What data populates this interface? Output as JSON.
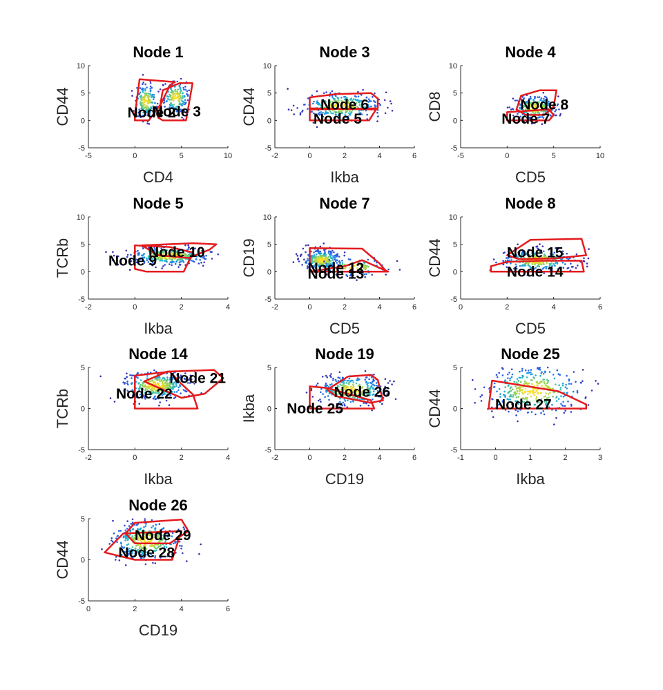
{
  "chart_data": [
    {
      "type": "scatter",
      "title": "Node 1",
      "xlabel": "CD4",
      "ylabel": "CD44",
      "xlim": [
        -5,
        10
      ],
      "ylim": [
        -5,
        10
      ],
      "xticks": [
        "-5",
        "0",
        "5",
        "10"
      ],
      "yticks": [
        "-5",
        "0",
        "5",
        "10"
      ],
      "clusters": [
        {
          "cx": 1.2,
          "cy": 3.5,
          "sx": 0.6,
          "sy": 1.6,
          "n": 170
        },
        {
          "cx": 4.4,
          "cy": 4.2,
          "sx": 0.7,
          "sy": 1.5,
          "n": 170
        }
      ],
      "gates": [
        {
          "name": "Node 2",
          "label_at": [
            1.8,
            1.4
          ],
          "polygon": [
            [
              0,
              1
            ],
            [
              0.5,
              7.5
            ],
            [
              4.3,
              7
            ],
            [
              3.8,
              6.5
            ],
            [
              2.8,
              3
            ],
            [
              1.5,
              0
            ],
            [
              0,
              0
            ]
          ]
        },
        {
          "name": "Node 3",
          "label_at": [
            4.5,
            1.6
          ],
          "polygon": [
            [
              2.5,
              0.5
            ],
            [
              3,
              5.5
            ],
            [
              4.8,
              6.8
            ],
            [
              6.2,
              6.8
            ],
            [
              5.5,
              0
            ],
            [
              3,
              0
            ]
          ]
        }
      ]
    },
    {
      "type": "scatter",
      "title": "Node 3",
      "xlabel": "Ikba",
      "ylabel": "CD44",
      "xlim": [
        -2,
        6
      ],
      "ylim": [
        -5,
        10
      ],
      "xticks": [
        "-2",
        "0",
        "2",
        "4",
        "6"
      ],
      "yticks": [
        "-5",
        "0",
        "5",
        "10"
      ],
      "clusters": [
        {
          "cx": 1.8,
          "cy": 2.6,
          "sx": 1.1,
          "sy": 1.2,
          "n": 320
        }
      ],
      "gates": [
        {
          "name": "Node 6",
          "label_at": [
            2,
            2.9
          ],
          "polygon": [
            [
              0,
              4.2
            ],
            [
              0,
              2
            ],
            [
              3.9,
              2.2
            ],
            [
              3.9,
              4
            ],
            [
              3.5,
              5
            ],
            [
              1.5,
              4.8
            ]
          ]
        },
        {
          "name": "Node 5",
          "label_at": [
            1.6,
            0.3
          ],
          "polygon": [
            [
              0,
              2.2
            ],
            [
              0,
              0
            ],
            [
              3.4,
              0
            ],
            [
              3.8,
              2
            ]
          ]
        }
      ]
    },
    {
      "type": "scatter",
      "title": "Node 4",
      "xlabel": "CD5",
      "ylabel": "CD8",
      "xlim": [
        -5,
        10
      ],
      "ylim": [
        -5,
        10
      ],
      "xticks": [
        "-5",
        "0",
        "5",
        "10"
      ],
      "yticks": [
        "-5",
        "0",
        "5",
        "10"
      ],
      "clusters": [
        {
          "cx": 3,
          "cy": 2.3,
          "sx": 1.2,
          "sy": 1.1,
          "n": 260
        }
      ],
      "gates": [
        {
          "name": "Node 8",
          "label_at": [
            4,
            2.9
          ],
          "polygon": [
            [
              1,
              2
            ],
            [
              1.5,
              4.5
            ],
            [
              3.5,
              5.5
            ],
            [
              5.3,
              5.5
            ],
            [
              5,
              2.5
            ],
            [
              4,
              1
            ],
            [
              2,
              1
            ]
          ]
        },
        {
          "name": "Node 7",
          "label_at": [
            2,
            0.3
          ],
          "polygon": [
            [
              0,
              0
            ],
            [
              0,
              1.5
            ],
            [
              4.5,
              2
            ],
            [
              5,
              1
            ],
            [
              4.5,
              0
            ]
          ]
        }
      ]
    },
    {
      "type": "scatter",
      "title": "Node 5",
      "xlabel": "Ikba",
      "ylabel": "TCRb",
      "xlim": [
        -2,
        4
      ],
      "ylim": [
        -5,
        10
      ],
      "xticks": [
        "-2",
        "0",
        "2",
        "4"
      ],
      "yticks": [
        "-5",
        "0",
        "5",
        "10"
      ],
      "clusters": [
        {
          "cx": 1.5,
          "cy": 2.9,
          "sx": 0.85,
          "sy": 0.8,
          "n": 340
        }
      ],
      "gates": [
        {
          "name": "Node 10",
          "label_at": [
            1.8,
            3.6
          ],
          "polygon": [
            [
              0.3,
              4.8
            ],
            [
              2.5,
              5.2
            ],
            [
              3.5,
              5
            ],
            [
              3.2,
              4
            ],
            [
              2.3,
              2.5
            ],
            [
              1,
              3
            ]
          ]
        },
        {
          "name": "Node 9",
          "label_at": [
            -0.1,
            2
          ],
          "polygon": [
            [
              0,
              0.5
            ],
            [
              0,
              4.8
            ],
            [
              1.5,
              4.5
            ],
            [
              2.5,
              3.5
            ],
            [
              2.1,
              0
            ],
            [
              0.5,
              0
            ]
          ]
        }
      ]
    },
    {
      "type": "scatter",
      "title": "Node 7",
      "xlabel": "CD5",
      "ylabel": "CD19",
      "xlim": [
        -2,
        6
      ],
      "ylim": [
        -5,
        10
      ],
      "xticks": [
        "-2",
        "0",
        "2",
        "4",
        "6"
      ],
      "yticks": [
        "-5",
        "0",
        "5",
        "10"
      ],
      "clusters": [
        {
          "cx": 0.7,
          "cy": 2.1,
          "sx": 0.55,
          "sy": 0.9,
          "n": 300
        },
        {
          "cx": 2.5,
          "cy": 0.8,
          "sx": 1,
          "sy": 0.8,
          "n": 100
        }
      ],
      "gates": [
        {
          "name": "Node 12",
          "label_at": [
            1.5,
            0.7
          ],
          "polygon": [
            [
              0,
              4.3
            ],
            [
              3,
              4.2
            ],
            [
              4,
              1.5
            ],
            [
              4.4,
              0
            ],
            [
              0,
              0
            ]
          ]
        },
        {
          "name": "Node 13",
          "label_at": [
            1.5,
            -0.4
          ],
          "polygon": [
            [
              0,
              0
            ],
            [
              2,
              1
            ],
            [
              3,
              2.1
            ],
            [
              4.5,
              0
            ]
          ]
        }
      ]
    },
    {
      "type": "scatter",
      "title": "Node 8",
      "xlabel": "CD5",
      "ylabel": "CD44",
      "xlim": [
        0,
        6
      ],
      "ylim": [
        -5,
        10
      ],
      "xticks": [
        "0",
        "2",
        "4",
        "6"
      ],
      "yticks": [
        "-5",
        "0",
        "5",
        "10"
      ],
      "clusters": [
        {
          "cx": 3.3,
          "cy": 2.1,
          "sx": 0.75,
          "sy": 1,
          "n": 300
        }
      ],
      "gates": [
        {
          "name": "Node 15",
          "label_at": [
            3.2,
            3.5
          ],
          "polygon": [
            [
              2,
              3
            ],
            [
              3,
              5.8
            ],
            [
              5.2,
              6
            ],
            [
              5.4,
              3
            ],
            [
              4,
              2.4
            ],
            [
              2.5,
              2.3
            ]
          ]
        },
        {
          "name": "Node 14",
          "label_at": [
            3.2,
            0
          ],
          "polygon": [
            [
              1.3,
              1
            ],
            [
              1.3,
              0
            ],
            [
              5.3,
              0
            ],
            [
              5.2,
              2
            ],
            [
              3.5,
              2
            ],
            [
              2,
              1.8
            ]
          ]
        }
      ]
    },
    {
      "type": "scatter",
      "title": "Node 14",
      "xlabel": "Ikba",
      "ylabel": "TCRb",
      "xlim": [
        -2,
        4
      ],
      "ylim": [
        -5,
        5
      ],
      "xticks": [
        "-2",
        "0",
        "2",
        "4"
      ],
      "yticks": [
        "-5",
        "0",
        "5"
      ],
      "clusters": [
        {
          "cx": 0.9,
          "cy": 2.8,
          "sx": 0.7,
          "sy": 0.85,
          "n": 360
        }
      ],
      "gates": [
        {
          "name": "Node 21",
          "label_at": [
            2.7,
            3.7
          ],
          "polygon": [
            [
              0.4,
              3.3
            ],
            [
              1.4,
              4.5
            ],
            [
              3.4,
              4.7
            ],
            [
              3.8,
              3.7
            ],
            [
              3,
              1.8
            ],
            [
              2,
              1.3
            ]
          ]
        },
        {
          "name": "Node 22",
          "label_at": [
            0.4,
            1.8
          ],
          "polygon": [
            [
              0,
              0
            ],
            [
              0,
              4
            ],
            [
              1.5,
              4.5
            ],
            [
              2,
              3
            ],
            [
              2.5,
              1.7
            ],
            [
              2.7,
              0
            ]
          ]
        }
      ]
    },
    {
      "type": "scatter",
      "title": "Node 19",
      "xlabel": "CD19",
      "ylabel": "Ikba",
      "xlim": [
        -2,
        6
      ],
      "ylim": [
        -5,
        5
      ],
      "xticks": [
        "-2",
        "0",
        "2",
        "4",
        "6"
      ],
      "yticks": [
        "-5",
        "0",
        "5"
      ],
      "clusters": [
        {
          "cx": 2.4,
          "cy": 2.2,
          "sx": 1,
          "sy": 0.9,
          "n": 340
        }
      ],
      "gates": [
        {
          "name": "Node 26",
          "label_at": [
            3,
            2
          ],
          "polygon": [
            [
              1,
              2.3
            ],
            [
              2.2,
              3.9
            ],
            [
              3.5,
              4.1
            ],
            [
              3.9,
              3.5
            ],
            [
              4.2,
              1
            ],
            [
              3.5,
              0.7
            ],
            [
              1.5,
              1.5
            ]
          ]
        },
        {
          "name": "Node 25",
          "label_at": [
            0.3,
            0
          ],
          "polygon": [
            [
              0,
              0
            ],
            [
              0,
              2.7
            ],
            [
              1,
              2.5
            ],
            [
              3.5,
              1
            ],
            [
              3.7,
              0
            ]
          ]
        }
      ]
    },
    {
      "type": "scatter",
      "title": "Node 25",
      "xlabel": "Ikba",
      "ylabel": "CD44",
      "xlim": [
        -1,
        3
      ],
      "ylim": [
        -5,
        5
      ],
      "xticks": [
        "-1",
        "0",
        "1",
        "2",
        "3"
      ],
      "yticks": [
        "-5",
        "0",
        "5"
      ],
      "clusters": [
        {
          "cx": 1.1,
          "cy": 2.2,
          "sx": 0.7,
          "sy": 1.5,
          "n": 380
        }
      ],
      "gates": [
        {
          "name": "Node 27",
          "label_at": [
            0.8,
            0.5
          ],
          "polygon": [
            [
              -0.1,
              3.4
            ],
            [
              1.8,
              2.1
            ],
            [
              2.6,
              0.5
            ],
            [
              2.6,
              0
            ],
            [
              -0.2,
              0
            ]
          ]
        }
      ]
    },
    {
      "type": "scatter",
      "title": "Node 26",
      "xlabel": "CD19",
      "ylabel": "CD44",
      "xlim": [
        0,
        6
      ],
      "ylim": [
        -5,
        5
      ],
      "xticks": [
        "0",
        "2",
        "4",
        "6"
      ],
      "yticks": [
        "-5",
        "0",
        "5"
      ],
      "clusters": [
        {
          "cx": 2.5,
          "cy": 2.3,
          "sx": 0.75,
          "sy": 1.2,
          "n": 360
        }
      ],
      "gates": [
        {
          "name": "Node 29",
          "label_at": [
            3.2,
            3
          ],
          "polygon": [
            [
              1.6,
              3.2
            ],
            [
              2,
              4.5
            ],
            [
              4,
              4.9
            ],
            [
              4.3,
              3.5
            ],
            [
              3.5,
              2
            ],
            [
              2,
              2
            ]
          ]
        },
        {
          "name": "Node 28",
          "label_at": [
            2.5,
            0.9
          ],
          "polygon": [
            [
              0.7,
              0.9
            ],
            [
              1.5,
              3.2
            ],
            [
              4,
              3.5
            ],
            [
              3.6,
              0
            ],
            [
              2,
              0
            ]
          ]
        }
      ]
    }
  ]
}
